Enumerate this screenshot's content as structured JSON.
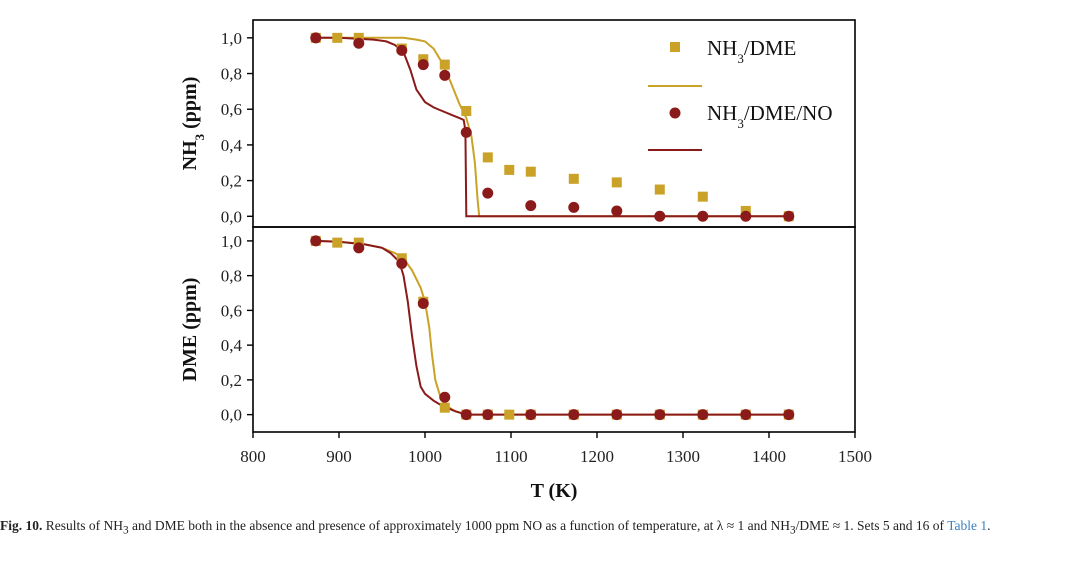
{
  "chart_data": {
    "type": "scatter",
    "xlabel": "T (K)",
    "xlim": [
      800,
      1500
    ],
    "xticks": [
      "800",
      "900",
      "1000",
      "1100",
      "1200",
      "1300",
      "1400",
      "1500"
    ],
    "xtick_values": [
      800,
      900,
      1000,
      1100,
      1200,
      1300,
      1400,
      1500
    ],
    "colors": {
      "nh3_dme": "#c9a227",
      "nh3_dme_no": "#8b1a1a"
    },
    "legend_position": "top-right",
    "panels": [
      {
        "id": "top",
        "ylabel_main": "NH",
        "ylabel_sub": "3",
        "ylabel_rest": " (ppm)",
        "ylim": [
          -0.06,
          1.1
        ],
        "yticks": [
          "0,0",
          "0,2",
          "0,4",
          "0,6",
          "0,8",
          "1,0"
        ],
        "ytick_values": [
          0,
          0.2,
          0.4,
          0.6,
          0.8,
          1.0
        ],
        "series": [
          {
            "name": "NH3/DME",
            "kind": "points",
            "marker": "square",
            "color": "#c9a227",
            "x": [
              873,
              898,
              923,
              973,
              998,
              1023,
              1048,
              1073,
              1098,
              1123,
              1173,
              1223,
              1273,
              1323,
              1373,
              1423
            ],
            "y": [
              1.0,
              1.0,
              1.0,
              0.94,
              0.88,
              0.85,
              0.59,
              0.33,
              0.26,
              0.25,
              0.21,
              0.19,
              0.15,
              0.11,
              0.03,
              0.0
            ]
          },
          {
            "name": "NH3/DME/NO",
            "kind": "points",
            "marker": "circle",
            "color": "#8b1a1a",
            "x": [
              873,
              923,
              973,
              998,
              1023,
              1048,
              1073,
              1123,
              1173,
              1223,
              1273,
              1323,
              1373,
              1423
            ],
            "y": [
              1.0,
              0.97,
              0.93,
              0.85,
              0.79,
              0.47,
              0.13,
              0.06,
              0.05,
              0.03,
              0.0,
              0.0,
              0.0,
              0.0
            ]
          },
          {
            "name": "NH3/DME",
            "kind": "line",
            "color": "#c9a227",
            "x": [
              873,
              900,
              950,
              975,
              990,
              1000,
              1010,
              1020,
              1030,
              1040,
              1048,
              1054,
              1058,
              1061,
              1063,
              1070,
              1200,
              1423
            ],
            "y": [
              1.0,
              1.0,
              1.0,
              1.0,
              0.99,
              0.98,
              0.94,
              0.86,
              0.75,
              0.63,
              0.55,
              0.45,
              0.3,
              0.1,
              0.0,
              0.0,
              0.0,
              0.0
            ]
          },
          {
            "name": "NH3/DME/NO",
            "kind": "line",
            "color": "#8b1a1a",
            "x": [
              873,
              900,
              940,
              955,
              965,
              975,
              983,
              990,
              1000,
              1010,
              1020,
              1030,
              1040,
              1045,
              1047,
              1048,
              1060,
              1200,
              1423
            ],
            "y": [
              1.0,
              1.0,
              0.99,
              0.98,
              0.96,
              0.92,
              0.82,
              0.71,
              0.64,
              0.61,
              0.59,
              0.57,
              0.55,
              0.54,
              0.48,
              0.0,
              0.0,
              0.0,
              0.0
            ]
          }
        ]
      },
      {
        "id": "bottom",
        "ylabel_main": "DME (ppm)",
        "ylabel_sub": "",
        "ylabel_rest": "",
        "ylim": [
          -0.1,
          1.08
        ],
        "yticks": [
          "0,0",
          "0,2",
          "0,4",
          "0,6",
          "0,8",
          "1,0"
        ],
        "ytick_values": [
          0,
          0.2,
          0.4,
          0.6,
          0.8,
          1.0
        ],
        "series": [
          {
            "name": "NH3/DME",
            "kind": "points",
            "marker": "square",
            "color": "#c9a227",
            "x": [
              873,
              898,
              923,
              973,
              998,
              1023,
              1048,
              1073,
              1098,
              1123,
              1173,
              1223,
              1273,
              1323,
              1373,
              1423
            ],
            "y": [
              1.0,
              0.99,
              0.99,
              0.9,
              0.65,
              0.04,
              0.0,
              0.0,
              0.0,
              0.0,
              0.0,
              0.0,
              0.0,
              0.0,
              0.0,
              0.0
            ]
          },
          {
            "name": "NH3/DME/NO",
            "kind": "points",
            "marker": "circle",
            "color": "#8b1a1a",
            "x": [
              873,
              923,
              973,
              998,
              1023,
              1048,
              1073,
              1123,
              1173,
              1223,
              1273,
              1323,
              1373,
              1423
            ],
            "y": [
              1.0,
              0.96,
              0.87,
              0.64,
              0.1,
              0.0,
              0.0,
              0.0,
              0.0,
              0.0,
              0.0,
              0.0,
              0.0,
              0.0
            ]
          },
          {
            "name": "NH3/DME",
            "kind": "line",
            "color": "#c9a227",
            "x": [
              873,
              900,
              930,
              950,
              965,
              975,
              985,
              995,
              1000,
              1005,
              1008,
              1012,
              1018,
              1025,
              1035,
              1048,
              1070,
              1423
            ],
            "y": [
              1.0,
              0.995,
              0.98,
              0.96,
              0.93,
              0.9,
              0.83,
              0.73,
              0.65,
              0.5,
              0.35,
              0.2,
              0.1,
              0.05,
              0.02,
              0.0,
              0.0,
              0.0
            ]
          },
          {
            "name": "NH3/DME/NO",
            "kind": "line",
            "color": "#8b1a1a",
            "x": [
              873,
              900,
              930,
              950,
              960,
              970,
              975,
              980,
              985,
              990,
              995,
              1000,
              1010,
              1020,
              1035,
              1048,
              1070,
              1423
            ],
            "y": [
              1.0,
              0.995,
              0.98,
              0.96,
              0.93,
              0.88,
              0.8,
              0.65,
              0.45,
              0.28,
              0.16,
              0.12,
              0.08,
              0.05,
              0.02,
              0.0,
              0.0,
              0.0
            ]
          }
        ]
      }
    ],
    "legend": [
      {
        "label_main": "NH",
        "label_sub": "3",
        "label_rest": "/DME",
        "color": "#c9a227",
        "marker": "square"
      },
      {
        "label_main": "NH",
        "label_sub": "3",
        "label_rest": "/DME/NO",
        "color": "#8b1a1a",
        "marker": "circle"
      }
    ]
  },
  "caption": {
    "fig_label": "Fig. 10.",
    "t1": " Results of NH",
    "s1": "3",
    "t2": " and DME both in the absence and presence of approximately 1000 ppm NO as a function of temperature, at λ ≈ 1 and NH",
    "s2": "3",
    "t3": "/DME ≈ 1. Sets 5 and 16 of ",
    "link": "Table 1",
    "t4": "."
  }
}
